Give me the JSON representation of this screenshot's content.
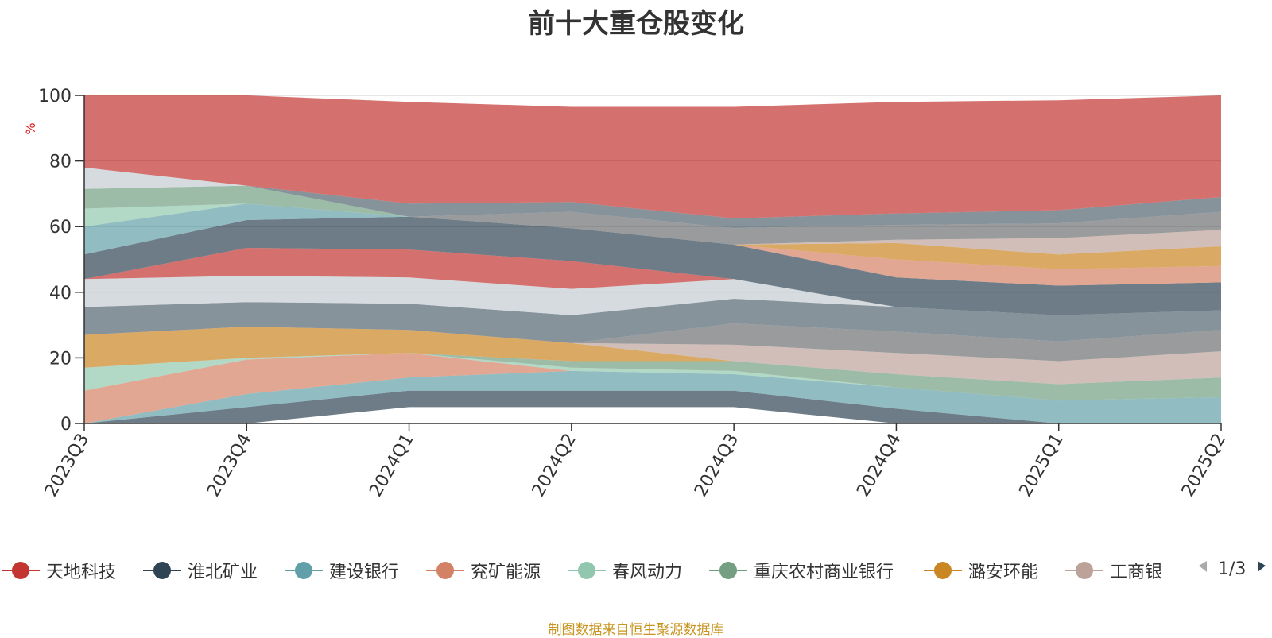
{
  "chart_data": {
    "type": "area",
    "title": "前十大重仓股变化",
    "ylabel": "%",
    "ylim": [
      0,
      100
    ],
    "yticks": [
      0,
      20,
      40,
      60,
      80,
      100
    ],
    "x": [
      "2023Q3",
      "2023Q4",
      "2024Q1",
      "2024Q2",
      "2024Q3",
      "2024Q4",
      "2025Q1",
      "2025Q2"
    ],
    "grid": true,
    "legend_position": "bottom",
    "series": [
      {
        "name": "天地科技",
        "color": "#c23531",
        "bottom": [
          0,
          0,
          5,
          5,
          5,
          0,
          0,
          0
        ],
        "top": [
          0,
          0,
          5,
          5,
          5,
          0,
          0,
          0
        ]
      },
      {
        "name": "淮北矿业",
        "color": "#2f4554",
        "bottom": [
          0,
          0,
          5,
          5,
          5,
          0,
          0,
          0
        ],
        "top": [
          0,
          5,
          10,
          10,
          10,
          4.5,
          0,
          0
        ]
      },
      {
        "name": "建设银行",
        "color": "#61a0a8",
        "bottom": [
          0,
          5,
          10,
          10,
          10,
          4.5,
          0,
          0
        ],
        "top": [
          0,
          9,
          14,
          16,
          15,
          11,
          7,
          8
        ]
      },
      {
        "name": "兖矿能源",
        "color": "#d48265",
        "bottom": [
          0,
          9,
          14,
          16,
          15,
          11,
          7,
          8
        ],
        "top": [
          10,
          19.5,
          21.5,
          16,
          15,
          11,
          7,
          8
        ]
      },
      {
        "name": "春风动力",
        "color": "#91c7ae",
        "bottom": [
          10,
          19.5,
          21.5,
          16,
          15,
          11,
          7,
          8
        ],
        "top": [
          17,
          20,
          21.5,
          17,
          16,
          11,
          7,
          8
        ]
      },
      {
        "name": "重庆农村商业银行",
        "color": "#749f83",
        "bottom": [
          17,
          20,
          21.5,
          17,
          16,
          11,
          7,
          8
        ],
        "top": [
          17,
          20,
          21.5,
          19,
          19,
          15,
          12,
          14
        ]
      },
      {
        "name": "潞安环能",
        "color": "#ca8622",
        "bottom": [
          17,
          20,
          21.5,
          19,
          19,
          15,
          12,
          14
        ],
        "top": [
          27,
          29.5,
          28.5,
          24.5,
          19,
          15,
          12,
          14
        ]
      },
      {
        "name": "工商银行",
        "color": "#bda29a",
        "bottom": [
          27,
          29.5,
          28.5,
          24.5,
          19,
          15,
          12,
          14
        ],
        "top": [
          27,
          29.5,
          28.5,
          24.5,
          24,
          21.5,
          19,
          22
        ]
      },
      {
        "color": "#6e7074",
        "bottom": [
          27,
          29.5,
          28.5,
          24.5,
          24,
          21.5,
          19,
          22
        ],
        "top": [
          27,
          29.5,
          28.5,
          24.5,
          30.5,
          28,
          25,
          28.5
        ]
      },
      {
        "color": "#546570",
        "bottom": [
          27,
          29.5,
          28.5,
          24.5,
          30.5,
          28,
          25,
          28.5
        ],
        "top": [
          35.5,
          37,
          36.5,
          33,
          38,
          35.5,
          33,
          34.5
        ]
      },
      {
        "color": "#c4ccd3",
        "bottom": [
          35.5,
          37,
          36.5,
          33,
          38,
          35.5,
          33,
          34.5
        ],
        "top": [
          44,
          45,
          44.5,
          41,
          44,
          35.5,
          33,
          34.5
        ]
      },
      {
        "color": "#c23531",
        "bottom": [
          44,
          45,
          44.5,
          41,
          44,
          35.5,
          33,
          34.5
        ],
        "top": [
          44,
          53.5,
          53,
          49.5,
          44,
          35.5,
          33,
          34.5
        ]
      },
      {
        "color": "#2f4554",
        "bottom": [
          44,
          53.5,
          53,
          49.5,
          44,
          35.5,
          33,
          34.5
        ],
        "top": [
          51.5,
          62,
          63,
          59.5,
          54.5,
          44.5,
          42,
          43
        ]
      },
      {
        "color": "#61a0a8",
        "bottom": [
          51.5,
          62,
          63,
          59.5,
          54.5,
          44.5,
          42,
          43
        ],
        "top": [
          60,
          67,
          63,
          59.5,
          54.5,
          44.5,
          42,
          43
        ]
      },
      {
        "color": "#d48265",
        "bottom": [
          60,
          67,
          63,
          59.5,
          54.5,
          44.5,
          42,
          43
        ],
        "top": [
          60,
          67,
          63,
          59.5,
          54.5,
          50,
          47,
          48
        ]
      },
      {
        "color": "#91c7ae",
        "bottom": [
          60,
          67,
          63,
          59.5,
          54.5,
          50,
          47,
          48
        ],
        "top": [
          65.5,
          67,
          63,
          59.5,
          54.5,
          50,
          47,
          48
        ]
      },
      {
        "color": "#749f83",
        "bottom": [
          65.5,
          67,
          63,
          59.5,
          54.5,
          50,
          47,
          48
        ],
        "top": [
          71.5,
          72.5,
          63,
          59.5,
          54.5,
          50,
          47,
          48
        ]
      },
      {
        "color": "#ca8622",
        "bottom": [
          71.5,
          72.5,
          63,
          59.5,
          54.5,
          50,
          47,
          48
        ],
        "top": [
          71.5,
          72.5,
          63,
          59.5,
          54.5,
          55,
          51.5,
          54
        ]
      },
      {
        "color": "#bda29a",
        "bottom": [
          71.5,
          72.5,
          63,
          59.5,
          54.5,
          55,
          51.5,
          54
        ],
        "top": [
          71.5,
          72.5,
          63,
          59.5,
          54.5,
          56,
          56.5,
          59
        ]
      },
      {
        "color": "#6e7074",
        "bottom": [
          71.5,
          72.5,
          63,
          59.5,
          54.5,
          56,
          56.5,
          59
        ],
        "top": [
          71.5,
          72.5,
          63,
          64.5,
          59.5,
          60.5,
          61,
          64.5
        ]
      },
      {
        "color": "#546570",
        "bottom": [
          71.5,
          72.5,
          63,
          64.5,
          59.5,
          60.5,
          61,
          64.5
        ],
        "top": [
          71.5,
          72.5,
          67,
          67.5,
          62.5,
          64,
          65,
          69
        ]
      },
      {
        "color": "#c4ccd3",
        "bottom": [
          71.5,
          72.5,
          67,
          67.5,
          62.5,
          64,
          65,
          69
        ],
        "top": [
          78,
          72.5,
          67,
          67.5,
          62.5,
          64,
          65,
          69
        ]
      },
      {
        "color": "#c23531",
        "bottom": [
          78,
          72.5,
          67,
          67.5,
          62.5,
          64,
          65,
          69
        ],
        "top": [
          100,
          100,
          98,
          96.5,
          96.5,
          98,
          98.5,
          100
        ]
      }
    ]
  },
  "legend": {
    "items": [
      {
        "label": "天地科技",
        "color": "#c23531"
      },
      {
        "label": "淮北矿业",
        "color": "#2f4554"
      },
      {
        "label": "建设银行",
        "color": "#61a0a8"
      },
      {
        "label": "兖矿能源",
        "color": "#d48265"
      },
      {
        "label": "春风动力",
        "color": "#91c7ae"
      },
      {
        "label": "重庆农村商业银行",
        "color": "#749f83"
      },
      {
        "label": "潞安环能",
        "color": "#ca8622"
      },
      {
        "label": "工商银行",
        "color": "#bda29a"
      }
    ],
    "page_indicator": "1/3",
    "prev_icon": "triangle-left-icon",
    "next_icon": "triangle-right-icon"
  },
  "source_note": "制图数据来自恒生聚源数据库"
}
